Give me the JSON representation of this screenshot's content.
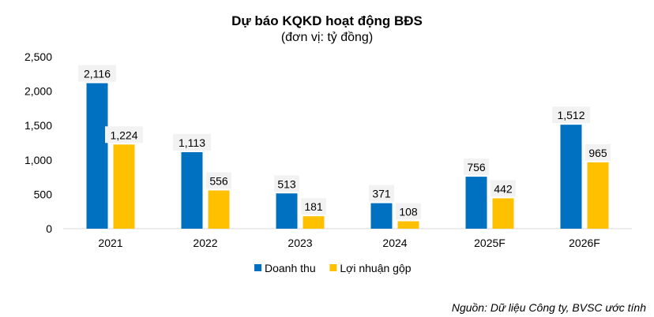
{
  "chart_data": {
    "type": "bar",
    "title": "Dự báo KQKD hoạt động BĐS",
    "subtitle": "(đơn vị: tỷ đồng)",
    "categories": [
      "2021",
      "2022",
      "2023",
      "2024",
      "2025F",
      "2026F"
    ],
    "series": [
      {
        "name": "Doanh thu",
        "color": "#0070c0",
        "values": [
          2116,
          1113,
          513,
          371,
          756,
          1512
        ],
        "labels": [
          "2,116",
          "1,113",
          "513",
          "371",
          "756",
          "1,512"
        ]
      },
      {
        "name": "Lợi nhuận gộp",
        "color": "#ffc000",
        "values": [
          1224,
          556,
          181,
          108,
          442,
          965
        ],
        "labels": [
          "1,224",
          "556",
          "181",
          "108",
          "442",
          "965"
        ]
      }
    ],
    "ylim": [
      0,
      2500
    ],
    "yticks": [
      0,
      500,
      1000,
      1500,
      2000,
      2500
    ],
    "ytick_labels": [
      "0",
      "500",
      "1,000",
      "1,500",
      "2,000",
      "2,500"
    ],
    "grid": false,
    "legend": "bottom-center"
  },
  "source_note": "Nguồn: Dữ liệu Công ty, BVSC ước tính",
  "colors": {
    "label_box": "#f2f2f2",
    "axis": "#d9d9d9"
  }
}
